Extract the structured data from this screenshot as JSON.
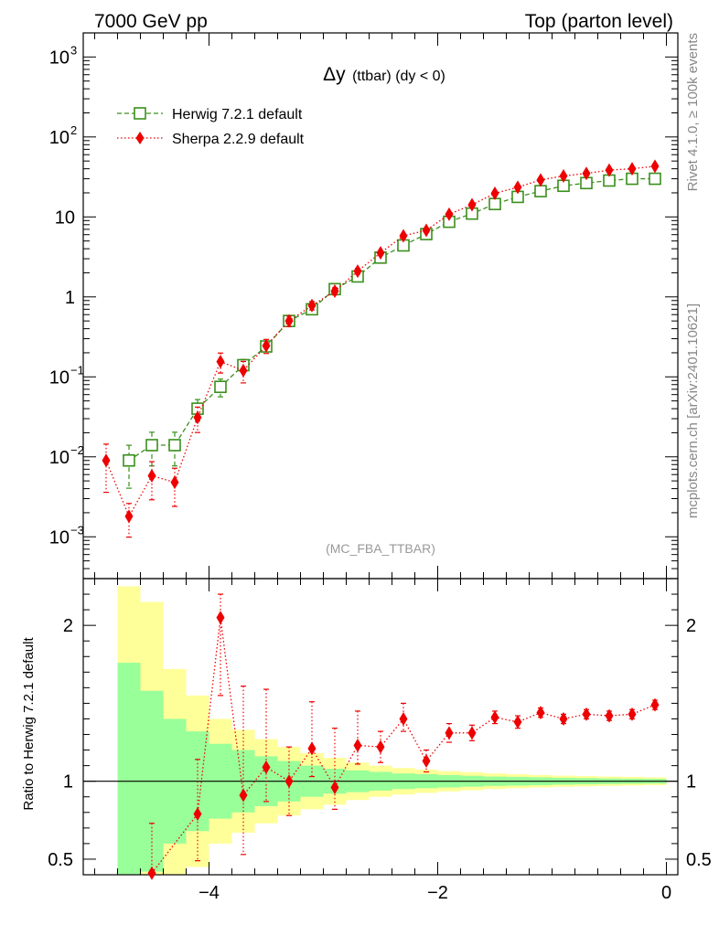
{
  "chart_data": {
    "type": "scatter",
    "header_left": "7000 GeV pp",
    "header_right": "Top (parton level)",
    "title_main": "Δy",
    "title_sub": "(ttbar) (dy < 0)",
    "analysis_tag": "(MC_FBA_TTBAR)",
    "side_label_top": "Rivet 4.1.0, ≥ 100k events",
    "side_label_bottom": "mcplots.cern.ch [arXiv:2401.10621]",
    "ratio_ylabel": "Ratio to Herwig 7.2.1 default",
    "legend_position": "top-left",
    "xlim": [
      -5.1,
      0.1
    ],
    "main_ylim": [
      0.0003,
      2000
    ],
    "main_yscale": "log",
    "ratio_ylim": [
      0.4,
      2.3
    ],
    "x_ticks": [
      {
        "value": -4,
        "label": "−4"
      },
      {
        "value": -2,
        "label": "−2"
      },
      {
        "value": 0,
        "label": "0"
      }
    ],
    "main_y_ticks": [
      {
        "value": 0.001,
        "label": "10",
        "exp": "−3"
      },
      {
        "value": 0.01,
        "label": "10",
        "exp": "−2"
      },
      {
        "value": 0.1,
        "label": "10",
        "exp": "−1"
      },
      {
        "value": 1,
        "label": "1",
        "exp": ""
      },
      {
        "value": 10,
        "label": "10",
        "exp": ""
      },
      {
        "value": 100,
        "label": "10",
        "exp": "2"
      },
      {
        "value": 1000,
        "label": "10",
        "exp": "3"
      }
    ],
    "ratio_y_ticks": [
      {
        "value": 0.5,
        "label": "0.5"
      },
      {
        "value": 1,
        "label": "1"
      },
      {
        "value": 2,
        "label": "2"
      }
    ],
    "bin_edges": [
      -4.8,
      -4.6,
      -4.4,
      -4.2,
      -4.0,
      -3.8,
      -3.6,
      -3.4,
      -3.2,
      -3.0,
      -2.8,
      -2.6,
      -2.4,
      -2.2,
      -2.0,
      -1.8,
      -1.6,
      -1.4,
      -1.2,
      -1.0,
      -0.8,
      -0.6,
      -0.4,
      -0.2,
      0.0
    ],
    "band_inner": [
      0.76,
      0.58,
      0.4,
      0.32,
      0.24,
      0.2,
      0.16,
      0.13,
      0.1,
      0.08,
      0.07,
      0.06,
      0.05,
      0.045,
      0.04,
      0.035,
      0.03,
      0.028,
      0.025,
      0.022,
      0.02,
      0.018,
      0.016,
      0.015
    ],
    "band_outer": [
      1.25,
      1.15,
      0.72,
      0.55,
      0.4,
      0.33,
      0.27,
      0.22,
      0.18,
      0.15,
      0.12,
      0.1,
      0.085,
      0.075,
      0.065,
      0.058,
      0.05,
      0.045,
      0.04,
      0.036,
      0.033,
      0.03,
      0.028,
      0.025
    ],
    "series": [
      {
        "name": "Herwig 7.2.1 default",
        "color": "#3a8f1c",
        "marker": "open-square",
        "line": "dashed",
        "x": [
          -4.7,
          -4.5,
          -4.3,
          -4.1,
          -3.9,
          -3.7,
          -3.5,
          -3.3,
          -3.1,
          -2.9,
          -2.7,
          -2.5,
          -2.3,
          -2.1,
          -1.9,
          -1.7,
          -1.5,
          -1.3,
          -1.1,
          -0.9,
          -0.7,
          -0.5,
          -0.3,
          -0.1
        ],
        "y": [
          0.009,
          0.014,
          0.014,
          0.04,
          0.075,
          0.14,
          0.24,
          0.5,
          0.7,
          1.25,
          1.8,
          3.1,
          4.4,
          6.1,
          8.7,
          11.0,
          14.5,
          17.8,
          21.0,
          24.5,
          26.5,
          28.5,
          30.0,
          30.0
        ],
        "err_rel": [
          0.55,
          0.45,
          0.45,
          0.3,
          0.25,
          0.18,
          0.13,
          0.1,
          0.08,
          0.07,
          0.06,
          0.05,
          0.045,
          0.04,
          0.035,
          0.03,
          0.03,
          0.025,
          0.025,
          0.02,
          0.02,
          0.02,
          0.015,
          0.015
        ]
      },
      {
        "name": "Sherpa 2.2.9 default",
        "color": "#ee0000",
        "marker": "filled-diamond",
        "line": "dotted",
        "x": [
          -4.9,
          -4.7,
          -4.5,
          -4.3,
          -4.1,
          -3.9,
          -3.7,
          -3.5,
          -3.3,
          -3.1,
          -2.9,
          -2.7,
          -2.5,
          -2.3,
          -2.1,
          -1.9,
          -1.7,
          -1.5,
          -1.3,
          -1.1,
          -0.9,
          -0.7,
          -0.5,
          -0.3,
          -0.1
        ],
        "y": [
          0.009,
          0.0018,
          0.0058,
          0.0048,
          0.031,
          0.155,
          0.12,
          0.245,
          0.5,
          0.78,
          1.18,
          2.1,
          3.55,
          5.8,
          6.8,
          10.8,
          14.2,
          19.7,
          23.5,
          29.0,
          32.5,
          35.0,
          38.5,
          40.0,
          43.0
        ],
        "err_rel": [
          0.6,
          0.45,
          0.5,
          0.5,
          0.35,
          0.28,
          0.3,
          0.2,
          0.15,
          0.12,
          0.1,
          0.08,
          0.06,
          0.05,
          0.045,
          0.04,
          0.035,
          0.03,
          0.025,
          0.025,
          0.02,
          0.02,
          0.02,
          0.02,
          0.02
        ]
      }
    ],
    "ratio": {
      "x": [
        -4.5,
        -4.1,
        -3.9,
        -3.7,
        -3.5,
        -3.3,
        -3.1,
        -2.9,
        -2.7,
        -2.5,
        -2.3,
        -2.1,
        -1.9,
        -1.7,
        -1.5,
        -1.3,
        -1.1,
        -0.9,
        -0.7,
        -0.5,
        -0.3,
        -0.1
      ],
      "y": [
        0.41,
        0.79,
        2.05,
        0.91,
        1.09,
        1.0,
        1.21,
        0.96,
        1.23,
        1.22,
        1.4,
        1.13,
        1.31,
        1.31,
        1.41,
        1.38,
        1.44,
        1.4,
        1.43,
        1.42,
        1.43,
        1.49
      ],
      "err_lo": [
        0.1,
        0.3,
        0.5,
        0.38,
        0.22,
        0.22,
        0.18,
        0.14,
        0.12,
        0.1,
        0.08,
        0.07,
        0.06,
        0.05,
        0.04,
        0.04,
        0.03,
        0.03,
        0.03,
        0.03,
        0.03,
        0.03
      ],
      "err_hi": [
        0.32,
        0.35,
        0.15,
        0.7,
        0.5,
        0.22,
        0.3,
        0.38,
        0.22,
        0.1,
        0.1,
        0.07,
        0.06,
        0.05,
        0.04,
        0.04,
        0.03,
        0.03,
        0.03,
        0.03,
        0.03,
        0.03
      ]
    },
    "band_colors": {
      "inner": "#99ff99",
      "outer": "#ffff99"
    }
  }
}
